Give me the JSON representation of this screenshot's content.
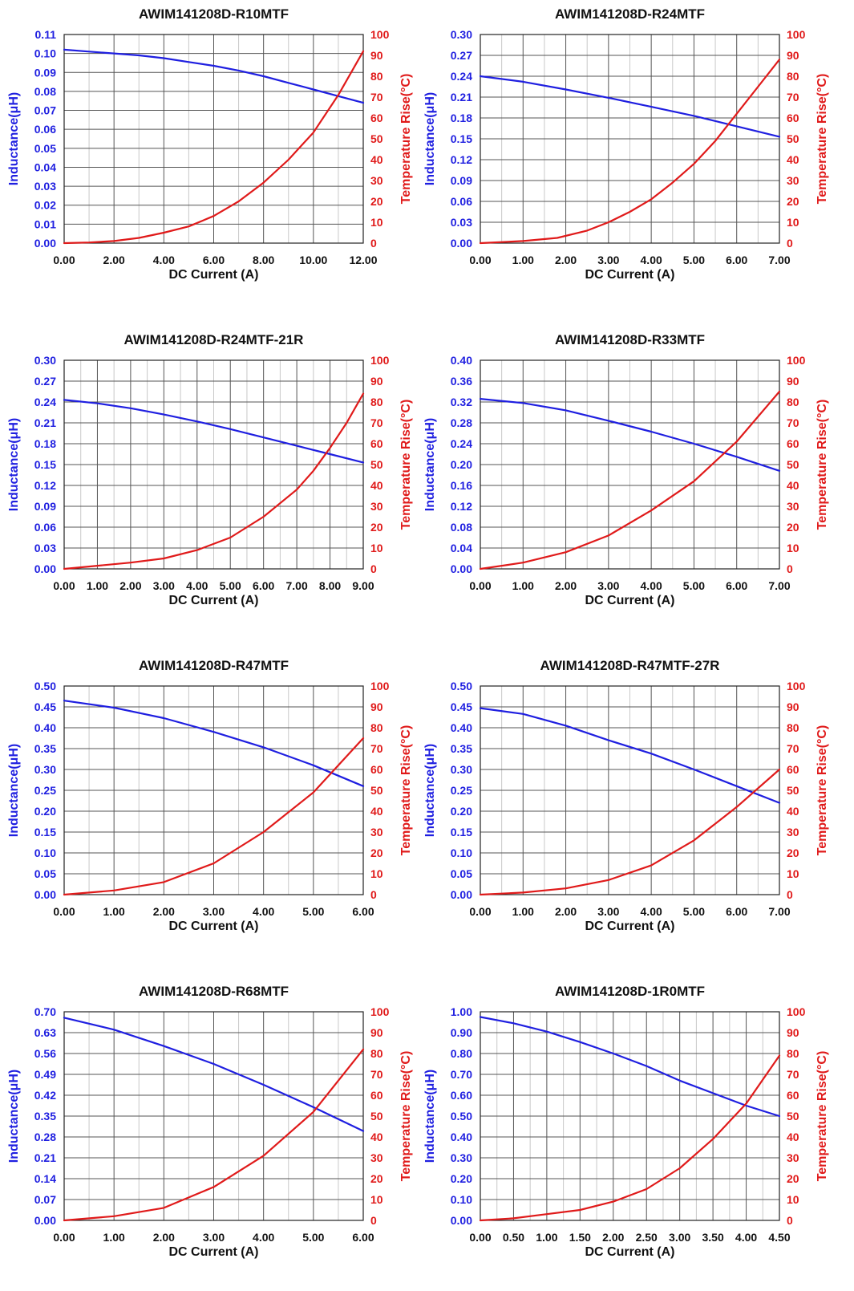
{
  "colors": {
    "inductance": "#1f1fe0",
    "temperature": "#e01a1a",
    "grid_major": "#555555",
    "grid_minor": "#c8c8c8"
  },
  "chart_data": [
    {
      "type": "line",
      "title": "AWIM141208D-R10MTF",
      "xlabel": "DC Current (A)",
      "ylabel": "Inductance(μH)",
      "y2label": "Temperature Rise(°C)",
      "xlim": [
        0,
        12
      ],
      "xticks": [
        "0.00",
        "2.00",
        "4.00",
        "6.00",
        "8.00",
        "10.00",
        "12.00"
      ],
      "x_minor_per_major": 2,
      "ylim": [
        0,
        0.11
      ],
      "yticks": [
        "0.00",
        "0.01",
        "0.02",
        "0.03",
        "0.04",
        "0.05",
        "0.06",
        "0.07",
        "0.08",
        "0.09",
        "0.10",
        "0.11"
      ],
      "y2lim": [
        0,
        100
      ],
      "y2ticks": [
        "0",
        "10",
        "20",
        "30",
        "40",
        "50",
        "60",
        "70",
        "80",
        "90",
        "100"
      ],
      "grid": true,
      "series": [
        {
          "axis": "left",
          "x": [
            0,
            1,
            2,
            3,
            4,
            5,
            6,
            7,
            8,
            9,
            10,
            11,
            12
          ],
          "values": [
            0.102,
            0.101,
            0.1,
            0.099,
            0.0975,
            0.0955,
            0.0935,
            0.091,
            0.088,
            0.0845,
            0.081,
            0.0775,
            0.074
          ]
        },
        {
          "axis": "right",
          "x": [
            0,
            1,
            2,
            3,
            4,
            5,
            6,
            7,
            8,
            9,
            10,
            11,
            12
          ],
          "values": [
            0,
            0.3,
            1,
            2.5,
            5,
            8,
            13,
            20,
            29,
            40,
            53,
            71,
            92
          ]
        }
      ]
    },
    {
      "type": "line",
      "title": "AWIM141208D-R24MTF",
      "xlabel": "DC Current (A)",
      "ylabel": "Inductance(μH)",
      "y2label": "Temperature Rise(°C)",
      "xlim": [
        0,
        7
      ],
      "xticks": [
        "0.00",
        "1.00",
        "2.00",
        "3.00",
        "4.00",
        "5.00",
        "6.00",
        "7.00"
      ],
      "x_minor_per_major": 2,
      "ylim": [
        0,
        0.3
      ],
      "yticks": [
        "0.00",
        "0.03",
        "0.06",
        "0.09",
        "0.12",
        "0.15",
        "0.18",
        "0.21",
        "0.24",
        "0.27",
        "0.30"
      ],
      "y2lim": [
        0,
        100
      ],
      "y2ticks": [
        "0",
        "10",
        "20",
        "30",
        "40",
        "50",
        "60",
        "70",
        "80",
        "90",
        "100"
      ],
      "grid": true,
      "series": [
        {
          "axis": "left",
          "x": [
            0,
            1,
            2,
            3,
            4,
            5,
            6,
            7
          ],
          "values": [
            0.24,
            0.232,
            0.221,
            0.209,
            0.196,
            0.183,
            0.168,
            0.153
          ]
        },
        {
          "axis": "right",
          "x": [
            0,
            1,
            1.8,
            2.5,
            3,
            3.5,
            4,
            4.5,
            5,
            5.5,
            6,
            6.5,
            7
          ],
          "values": [
            0,
            1,
            2.5,
            6,
            10,
            15,
            21,
            29,
            38,
            49,
            62,
            75,
            88
          ]
        }
      ]
    },
    {
      "type": "line",
      "title": "AWIM141208D-R24MTF-21R",
      "xlabel": "DC Current (A)",
      "ylabel": "Inductance(μH)",
      "y2label": "Temperature Rise(°C)",
      "xlim": [
        0,
        9
      ],
      "xticks": [
        "0.00",
        "1.00",
        "2.00",
        "3.00",
        "4.00",
        "5.00",
        "6.00",
        "7.00",
        "8.00",
        "9.00"
      ],
      "x_minor_per_major": 2,
      "ylim": [
        0,
        0.3
      ],
      "yticks": [
        "0.00",
        "0.03",
        "0.06",
        "0.09",
        "0.12",
        "0.15",
        "0.18",
        "0.21",
        "0.24",
        "0.27",
        "0.30"
      ],
      "y2lim": [
        0,
        100
      ],
      "y2ticks": [
        "0",
        "10",
        "20",
        "30",
        "40",
        "50",
        "60",
        "70",
        "80",
        "90",
        "100"
      ],
      "grid": true,
      "series": [
        {
          "axis": "left",
          "x": [
            0,
            1,
            2,
            3,
            4,
            5,
            6,
            7,
            8,
            9
          ],
          "values": [
            0.243,
            0.238,
            0.231,
            0.222,
            0.212,
            0.201,
            0.189,
            0.177,
            0.165,
            0.153
          ]
        },
        {
          "axis": "right",
          "x": [
            0,
            1,
            2,
            3,
            4,
            5,
            6,
            7,
            7.5,
            8,
            8.5,
            9
          ],
          "values": [
            0,
            1.5,
            3,
            5,
            9,
            15,
            25,
            38,
            47,
            58,
            70,
            84
          ]
        }
      ]
    },
    {
      "type": "line",
      "title": "AWIM141208D-R33MTF",
      "xlabel": "DC Current (A)",
      "ylabel": "Inductance(μH)",
      "y2label": "Temperature Rise(°C)",
      "xlim": [
        0,
        7
      ],
      "xticks": [
        "0.00",
        "1.00",
        "2.00",
        "3.00",
        "4.00",
        "5.00",
        "6.00",
        "7.00"
      ],
      "x_minor_per_major": 2,
      "ylim": [
        0,
        0.4
      ],
      "yticks": [
        "0.00",
        "0.04",
        "0.08",
        "0.12",
        "0.16",
        "0.20",
        "0.24",
        "0.28",
        "0.32",
        "0.36",
        "0.40"
      ],
      "y2lim": [
        0,
        100
      ],
      "y2ticks": [
        "0",
        "10",
        "20",
        "30",
        "40",
        "50",
        "60",
        "70",
        "80",
        "90",
        "100"
      ],
      "grid": true,
      "series": [
        {
          "axis": "left",
          "x": [
            0,
            1,
            2,
            3,
            4,
            5,
            6,
            7
          ],
          "values": [
            0.326,
            0.318,
            0.304,
            0.284,
            0.263,
            0.24,
            0.215,
            0.188
          ]
        },
        {
          "axis": "right",
          "x": [
            0,
            1,
            2,
            3,
            4,
            5,
            6,
            7
          ],
          "values": [
            0,
            3,
            8,
            16,
            28,
            42,
            61,
            85
          ]
        }
      ]
    },
    {
      "type": "line",
      "title": "AWIM141208D-R47MTF",
      "xlabel": "DC Current (A)",
      "ylabel": "Inductance(μH)",
      "y2label": "Temperature Rise(°C)",
      "xlim": [
        0,
        6
      ],
      "xticks": [
        "0.00",
        "1.00",
        "2.00",
        "3.00",
        "4.00",
        "5.00",
        "6.00"
      ],
      "x_minor_per_major": 2,
      "ylim": [
        0,
        0.5
      ],
      "yticks": [
        "0.00",
        "0.05",
        "0.10",
        "0.15",
        "0.20",
        "0.25",
        "0.30",
        "0.35",
        "0.40",
        "0.45",
        "0.50"
      ],
      "y2lim": [
        0,
        100
      ],
      "y2ticks": [
        "0",
        "10",
        "20",
        "30",
        "40",
        "50",
        "60",
        "70",
        "80",
        "90",
        "100"
      ],
      "grid": true,
      "series": [
        {
          "axis": "left",
          "x": [
            0,
            1,
            2,
            3,
            4,
            5,
            6
          ],
          "values": [
            0.465,
            0.448,
            0.423,
            0.39,
            0.353,
            0.31,
            0.26
          ]
        },
        {
          "axis": "right",
          "x": [
            0,
            1,
            2,
            3,
            4,
            5,
            6
          ],
          "values": [
            0,
            2,
            6,
            15,
            30,
            49,
            75
          ]
        }
      ]
    },
    {
      "type": "line",
      "title": "AWIM141208D-R47MTF-27R",
      "xlabel": "DC Current (A)",
      "ylabel": "Inductance(μH)",
      "y2label": "Temperature Rise(°C)",
      "xlim": [
        0,
        7
      ],
      "xticks": [
        "0.00",
        "1.00",
        "2.00",
        "3.00",
        "4.00",
        "5.00",
        "6.00",
        "7.00"
      ],
      "x_minor_per_major": 2,
      "ylim": [
        0,
        0.5
      ],
      "yticks": [
        "0.00",
        "0.05",
        "0.10",
        "0.15",
        "0.20",
        "0.25",
        "0.30",
        "0.35",
        "0.40",
        "0.45",
        "0.50"
      ],
      "y2lim": [
        0,
        100
      ],
      "y2ticks": [
        "0",
        "10",
        "20",
        "30",
        "40",
        "50",
        "60",
        "70",
        "80",
        "90",
        "100"
      ],
      "grid": true,
      "series": [
        {
          "axis": "left",
          "x": [
            0,
            1,
            2,
            3,
            4,
            5,
            6,
            7
          ],
          "values": [
            0.447,
            0.433,
            0.405,
            0.37,
            0.338,
            0.3,
            0.26,
            0.22
          ]
        },
        {
          "axis": "right",
          "x": [
            0,
            1,
            2,
            3,
            4,
            5,
            6,
            7
          ],
          "values": [
            0,
            1,
            3,
            7,
            14,
            26,
            42,
            60
          ]
        }
      ]
    },
    {
      "type": "line",
      "title": "AWIM141208D-R68MTF",
      "xlabel": "DC Current (A)",
      "ylabel": "Inductance(μH)",
      "y2label": "Temperature Rise(°C)",
      "xlim": [
        0,
        6
      ],
      "xticks": [
        "0.00",
        "1.00",
        "2.00",
        "3.00",
        "4.00",
        "5.00",
        "6.00"
      ],
      "x_minor_per_major": 2,
      "ylim": [
        0,
        0.7
      ],
      "yticks": [
        "0.00",
        "0.07",
        "0.14",
        "0.21",
        "0.28",
        "0.35",
        "0.42",
        "0.49",
        "0.56",
        "0.63",
        "0.70"
      ],
      "y2lim": [
        0,
        100
      ],
      "y2ticks": [
        "0",
        "10",
        "20",
        "30",
        "40",
        "50",
        "60",
        "70",
        "80",
        "90",
        "100"
      ],
      "grid": true,
      "series": [
        {
          "axis": "left",
          "x": [
            0,
            1,
            2,
            3,
            4,
            5,
            6
          ],
          "values": [
            0.68,
            0.64,
            0.585,
            0.525,
            0.455,
            0.38,
            0.3
          ]
        },
        {
          "axis": "right",
          "x": [
            0,
            1,
            2,
            3,
            4,
            5,
            6
          ],
          "values": [
            0,
            2,
            6,
            16,
            31,
            52,
            82
          ]
        }
      ]
    },
    {
      "type": "line",
      "title": "AWIM141208D-1R0MTF",
      "xlabel": "DC Current (A)",
      "ylabel": "Inductance(μH)",
      "y2label": "Temperature Rise(°C)",
      "xlim": [
        0,
        4.5
      ],
      "xticks": [
        "0.00",
        "0.50",
        "1.00",
        "1.50",
        "2.00",
        "2.50",
        "3.00",
        "3.50",
        "4.00",
        "4.50"
      ],
      "x_minor_per_major": 2,
      "ylim": [
        0,
        1.0
      ],
      "yticks": [
        "0.00",
        "0.10",
        "0.20",
        "0.30",
        "0.40",
        "0.50",
        "0.60",
        "0.70",
        "0.80",
        "0.90",
        "1.00"
      ],
      "y2lim": [
        0,
        100
      ],
      "y2ticks": [
        "0",
        "10",
        "20",
        "30",
        "40",
        "50",
        "60",
        "70",
        "80",
        "90",
        "100"
      ],
      "grid": true,
      "series": [
        {
          "axis": "left",
          "x": [
            0,
            0.5,
            1,
            1.5,
            2,
            2.5,
            3,
            3.5,
            4,
            4.5
          ],
          "values": [
            0.975,
            0.945,
            0.905,
            0.855,
            0.8,
            0.74,
            0.67,
            0.61,
            0.55,
            0.5
          ]
        },
        {
          "axis": "right",
          "x": [
            0,
            0.5,
            1,
            1.5,
            2,
            2.5,
            3,
            3.5,
            4,
            4.5
          ],
          "values": [
            0,
            1,
            3,
            5,
            9,
            15,
            25,
            39,
            56,
            79
          ]
        }
      ]
    }
  ]
}
